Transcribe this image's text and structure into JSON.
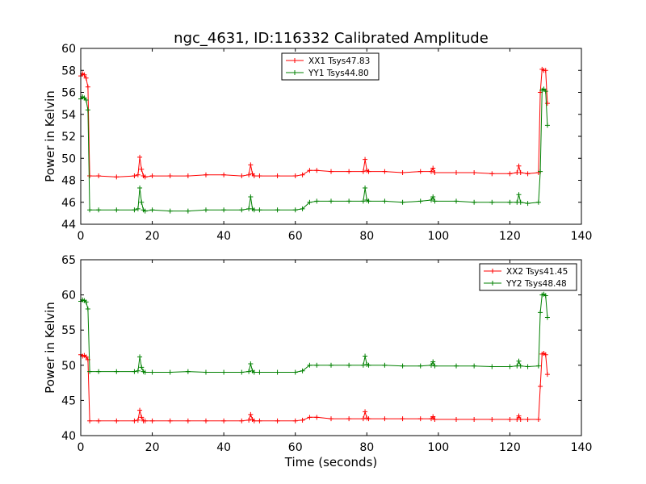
{
  "figure_title": "ngc_4631, ID:116332 Calibrated Amplitude",
  "x_axis_label": "Time (seconds)",
  "chart_data": [
    {
      "type": "line",
      "title": "ngc_4631, ID:116332 Calibrated Amplitude",
      "xlabel": "",
      "ylabel": "Power in Kelvin",
      "xlim": [
        0,
        140
      ],
      "ylim": [
        44,
        60
      ],
      "x_ticks": [
        "0",
        "20",
        "40",
        "60",
        "80",
        "100",
        "120",
        "140"
      ],
      "y_ticks": [
        "44",
        "46",
        "48",
        "50",
        "52",
        "54",
        "56",
        "58",
        "60"
      ],
      "legend_position": "top-center",
      "series": [
        {
          "name": "XX1 Tsys47.83",
          "color": "#ff0000",
          "x": [
            0,
            0.5,
            1,
            1.5,
            2,
            2.5,
            5,
            10,
            15,
            16,
            16.5,
            17,
            17.5,
            18,
            20,
            25,
            30,
            35,
            40,
            45,
            47,
            47.5,
            48,
            48.5,
            50,
            55,
            60,
            62,
            64,
            66,
            70,
            75,
            79,
            79.5,
            80,
            80.5,
            85,
            90,
            95,
            98,
            98.5,
            99,
            105,
            110,
            115,
            120,
            122,
            122.5,
            123,
            125,
            128,
            128.5,
            129,
            129.5,
            130,
            130.5
          ],
          "y": [
            57.5,
            57.7,
            57.6,
            57.3,
            56.5,
            48.4,
            48.4,
            48.3,
            48.4,
            48.5,
            50.1,
            49.0,
            48.4,
            48.3,
            48.4,
            48.4,
            48.4,
            48.5,
            48.5,
            48.4,
            48.5,
            49.4,
            48.6,
            48.4,
            48.4,
            48.4,
            48.4,
            48.5,
            48.9,
            48.9,
            48.8,
            48.8,
            48.8,
            49.9,
            48.9,
            48.8,
            48.8,
            48.7,
            48.8,
            48.8,
            49.1,
            48.7,
            48.7,
            48.7,
            48.6,
            48.6,
            48.7,
            49.3,
            48.7,
            48.6,
            48.7,
            56.0,
            58.1,
            58.0,
            58.0,
            55.0
          ]
        },
        {
          "name": "YY1 Tsys44.80",
          "color": "#008000",
          "x": [
            0,
            0.5,
            1,
            1.5,
            2,
            2.5,
            5,
            10,
            15,
            16,
            16.5,
            17,
            17.5,
            18,
            20,
            25,
            30,
            35,
            40,
            45,
            47,
            47.5,
            48,
            48.5,
            50,
            55,
            60,
            62,
            64,
            66,
            70,
            75,
            79,
            79.5,
            80,
            80.5,
            85,
            90,
            95,
            98,
            98.5,
            99,
            105,
            110,
            115,
            120,
            122,
            122.5,
            123,
            125,
            128,
            128.5,
            129,
            129.5,
            130,
            130.5
          ],
          "y": [
            55.4,
            55.6,
            55.5,
            55.3,
            54.4,
            45.3,
            45.3,
            45.3,
            45.3,
            45.4,
            47.3,
            46.0,
            45.3,
            45.2,
            45.3,
            45.2,
            45.2,
            45.3,
            45.3,
            45.3,
            45.4,
            46.5,
            45.4,
            45.3,
            45.3,
            45.3,
            45.3,
            45.4,
            46.0,
            46.1,
            46.1,
            46.1,
            46.1,
            47.3,
            46.2,
            46.1,
            46.1,
            46.0,
            46.1,
            46.2,
            46.5,
            46.1,
            46.1,
            46.0,
            46.0,
            46.0,
            46.0,
            46.7,
            46.0,
            45.9,
            46.0,
            48.8,
            56.2,
            56.3,
            56.1,
            53.0
          ]
        }
      ]
    },
    {
      "type": "line",
      "title": "",
      "xlabel": "Time (seconds)",
      "ylabel": "Power in Kelvin",
      "xlim": [
        0,
        140
      ],
      "ylim": [
        40,
        65
      ],
      "x_ticks": [
        "0",
        "20",
        "40",
        "60",
        "80",
        "100",
        "120",
        "140"
      ],
      "y_ticks": [
        "40",
        "45",
        "50",
        "55",
        "60",
        "65"
      ],
      "legend_position": "top-right",
      "series": [
        {
          "name": "XX2 Tsys41.45",
          "color": "#ff0000",
          "x": [
            0,
            0.5,
            1,
            1.5,
            2,
            2.5,
            5,
            10,
            15,
            16,
            16.5,
            17,
            17.5,
            18,
            20,
            25,
            30,
            35,
            40,
            45,
            47,
            47.5,
            48,
            48.5,
            50,
            55,
            60,
            62,
            64,
            66,
            70,
            75,
            79,
            79.5,
            80,
            80.5,
            85,
            90,
            95,
            98,
            98.5,
            99,
            105,
            110,
            115,
            120,
            122,
            122.5,
            123,
            125,
            128,
            128.5,
            129,
            129.5,
            130,
            130.5
          ],
          "y": [
            51.5,
            51.3,
            51.4,
            51.2,
            50.8,
            42.1,
            42.1,
            42.1,
            42.1,
            42.2,
            43.6,
            42.6,
            42.1,
            42.1,
            42.1,
            42.1,
            42.1,
            42.1,
            42.1,
            42.1,
            42.2,
            43.0,
            42.3,
            42.1,
            42.1,
            42.1,
            42.1,
            42.2,
            42.6,
            42.6,
            42.4,
            42.4,
            42.4,
            43.4,
            42.5,
            42.4,
            42.4,
            42.4,
            42.4,
            42.4,
            42.7,
            42.3,
            42.3,
            42.3,
            42.3,
            42.3,
            42.3,
            42.8,
            42.3,
            42.3,
            42.3,
            47.0,
            51.6,
            51.7,
            51.5,
            48.7
          ]
        },
        {
          "name": "YY2 Tsys48.48",
          "color": "#008000",
          "x": [
            0,
            0.5,
            1,
            1.5,
            2,
            2.5,
            5,
            10,
            15,
            16,
            16.5,
            17,
            17.5,
            18,
            20,
            25,
            30,
            35,
            40,
            45,
            47,
            47.5,
            48,
            48.5,
            50,
            55,
            60,
            62,
            64,
            66,
            70,
            75,
            79,
            79.5,
            80,
            80.5,
            85,
            90,
            95,
            98,
            98.5,
            99,
            105,
            110,
            115,
            120,
            122,
            122.5,
            123,
            125,
            128,
            128.5,
            129,
            129.5,
            130,
            130.5
          ],
          "y": [
            59.1,
            59.3,
            59.2,
            59.0,
            58.0,
            49.1,
            49.1,
            49.1,
            49.1,
            49.2,
            51.2,
            49.7,
            49.1,
            49.0,
            49.0,
            49.0,
            49.1,
            49.0,
            49.0,
            49.0,
            49.1,
            50.2,
            49.2,
            49.0,
            49.0,
            49.0,
            49.0,
            49.2,
            50.0,
            50.0,
            50.0,
            50.0,
            50.0,
            51.3,
            50.1,
            50.0,
            50.0,
            49.9,
            49.9,
            50.0,
            50.5,
            49.9,
            49.9,
            49.9,
            49.8,
            49.8,
            49.9,
            50.6,
            49.9,
            49.8,
            49.9,
            57.5,
            60.0,
            60.1,
            59.9,
            56.8
          ]
        }
      ]
    }
  ]
}
